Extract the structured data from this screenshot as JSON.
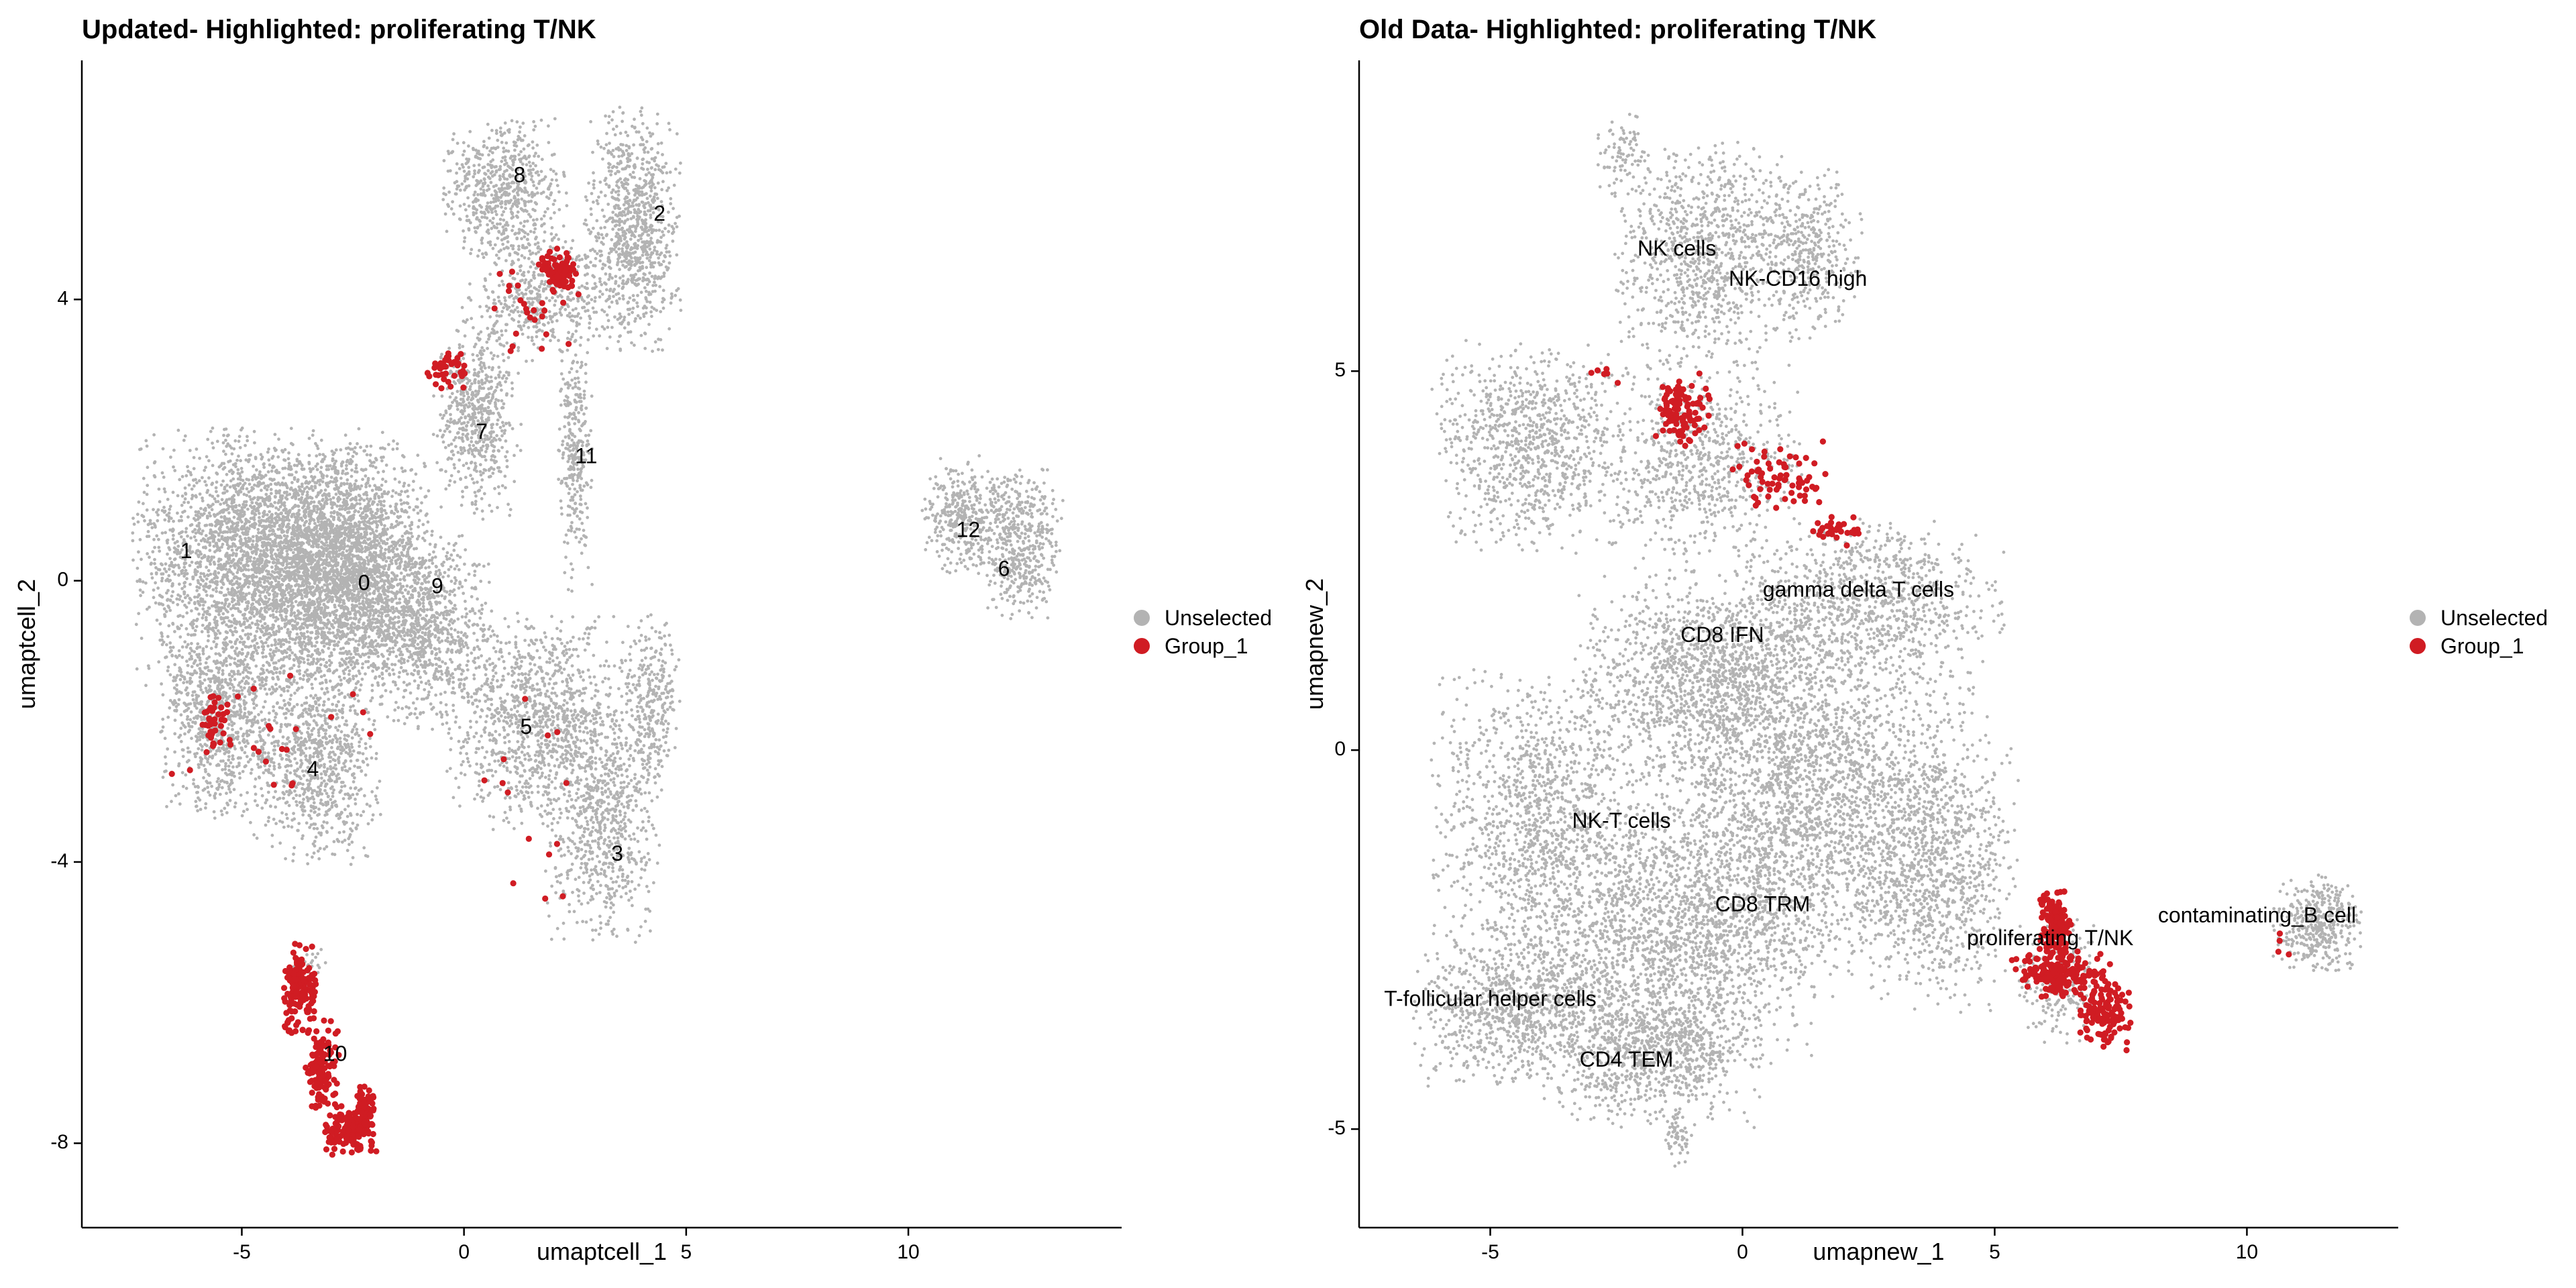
{
  "colors": {
    "unselected": "#b3b3b3",
    "group_1": "#d01c23"
  },
  "chart_data": [
    {
      "type": "scatter",
      "title": "Updated- Highlighted: proliferating T/NK",
      "xlabel": "umaptcell_1",
      "ylabel": "umaptcell_2",
      "xlim": [
        -8.6,
        14.8
      ],
      "ylim": [
        -9.2,
        7.4
      ],
      "xticks": [
        -5,
        0,
        5,
        10
      ],
      "yticks": [
        -8,
        -4,
        0,
        4
      ],
      "legend": {
        "position": "right",
        "entries": [
          "Unselected",
          "Group_1"
        ]
      },
      "cluster_labels": [
        {
          "text": "8",
          "x": 1.25,
          "y": 5.75
        },
        {
          "text": "2",
          "x": 4.4,
          "y": 5.2
        },
        {
          "text": "7",
          "x": 0.4,
          "y": 2.1
        },
        {
          "text": "11",
          "x": 2.75,
          "y": 1.75
        },
        {
          "text": "1",
          "x": -6.25,
          "y": 0.4
        },
        {
          "text": "0",
          "x": -2.25,
          "y": -0.05
        },
        {
          "text": "9",
          "x": -0.6,
          "y": -0.1
        },
        {
          "text": "12",
          "x": 11.35,
          "y": 0.7
        },
        {
          "text": "6",
          "x": 12.15,
          "y": 0.15
        },
        {
          "text": "5",
          "x": 1.4,
          "y": -2.1
        },
        {
          "text": "4",
          "x": -3.4,
          "y": -2.7
        },
        {
          "text": "3",
          "x": 3.45,
          "y": -3.9
        },
        {
          "text": "10",
          "x": -2.9,
          "y": -6.75
        }
      ],
      "series": [
        {
          "name": "Unselected",
          "color": "#b3b3b3",
          "regions": [
            {
              "cx": -4.5,
              "cy": 0.3,
              "rx": 2.7,
              "ry": 1.7,
              "n": 3200
            },
            {
              "cx": -2.6,
              "cy": 0.2,
              "rx": 1.8,
              "ry": 1.6,
              "n": 2200
            },
            {
              "cx": -5.4,
              "cy": -1.9,
              "rx": 1.3,
              "ry": 1.4,
              "n": 900
            },
            {
              "cx": -3.3,
              "cy": -2.5,
              "rx": 1.3,
              "ry": 1.4,
              "n": 900
            },
            {
              "cx": -0.9,
              "cy": -0.7,
              "rx": 1.4,
              "ry": 1.3,
              "n": 900
            },
            {
              "cx": 1.7,
              "cy": -2.0,
              "rx": 1.9,
              "ry": 1.4,
              "n": 1100
            },
            {
              "cx": 3.1,
              "cy": -3.5,
              "rx": 1.2,
              "ry": 1.5,
              "n": 700
            },
            {
              "cx": 4.2,
              "cy": -1.8,
              "rx": 0.6,
              "ry": 1.2,
              "n": 300
            },
            {
              "cx": 0.3,
              "cy": 2.3,
              "rx": 0.9,
              "ry": 1.3,
              "n": 600
            },
            {
              "cx": 2.5,
              "cy": 1.8,
              "rx": 0.35,
              "ry": 1.8,
              "n": 300
            },
            {
              "cx": 0.9,
              "cy": 5.6,
              "rx": 1.3,
              "ry": 0.9,
              "n": 600
            },
            {
              "cx": 3.8,
              "cy": 5.0,
              "rx": 1.0,
              "ry": 1.6,
              "n": 900
            },
            {
              "cx": 1.7,
              "cy": 4.1,
              "rx": 1.6,
              "ry": 0.9,
              "n": 500
            },
            {
              "cx": 11.3,
              "cy": 0.9,
              "rx": 0.9,
              "ry": 0.8,
              "n": 400
            },
            {
              "cx": 12.6,
              "cy": 0.5,
              "rx": 0.8,
              "ry": 1.0,
              "n": 450
            },
            {
              "cx": -3.5,
              "cy": -5.5,
              "rx": 0.4,
              "ry": 0.3,
              "n": 40
            }
          ]
        },
        {
          "name": "Group_1",
          "color": "#d01c23",
          "regions": [
            {
              "cx": -3.7,
              "cy": -5.8,
              "rx": 0.35,
              "ry": 0.6,
              "n": 160
            },
            {
              "cx": -3.2,
              "cy": -6.9,
              "rx": 0.35,
              "ry": 0.6,
              "n": 120
            },
            {
              "cx": -2.6,
              "cy": -7.8,
              "rx": 0.6,
              "ry": 0.35,
              "n": 140
            },
            {
              "cx": -2.2,
              "cy": -7.5,
              "rx": 0.2,
              "ry": 0.3,
              "n": 50
            },
            {
              "cx": 2.1,
              "cy": 4.4,
              "rx": 0.4,
              "ry": 0.3,
              "n": 80
            },
            {
              "cx": -0.4,
              "cy": 3.0,
              "rx": 0.5,
              "ry": 0.3,
              "n": 40
            },
            {
              "cx": -5.6,
              "cy": -2.0,
              "rx": 0.3,
              "ry": 0.45,
              "n": 40
            },
            {
              "cx": 1.6,
              "cy": 3.8,
              "rx": 1.0,
              "ry": 0.6,
              "n": 25
            },
            {
              "cx": -3.8,
              "cy": -2.2,
              "rx": 2.6,
              "ry": 1.0,
              "n": 22
            },
            {
              "cx": 1.5,
              "cy": -3.5,
              "rx": 1.2,
              "ry": 2.0,
              "n": 14
            }
          ]
        }
      ]
    },
    {
      "type": "scatter",
      "title": "Old Data- Highlighted: proliferating T/NK",
      "xlabel": "umapnew_1",
      "ylabel": "umapnew_2",
      "xlim": [
        -7.6,
        13.0
      ],
      "ylim": [
        -6.3,
        9.1
      ],
      "xticks": [
        -5,
        0,
        5,
        10
      ],
      "yticks": [
        -5,
        0,
        5
      ],
      "legend": {
        "position": "right",
        "entries": [
          "Unselected",
          "Group_1"
        ]
      },
      "cluster_labels": [
        {
          "text": "NK cells",
          "x": -1.3,
          "y": 6.6
        },
        {
          "text": "NK-CD16 high",
          "x": 1.1,
          "y": 6.2
        },
        {
          "text": "gamma delta T cells",
          "x": 2.3,
          "y": 2.1
        },
        {
          "text": "CD8 IFN",
          "x": -0.4,
          "y": 1.5
        },
        {
          "text": "NK-T cells",
          "x": -2.4,
          "y": -0.95
        },
        {
          "text": "CD8 TRM",
          "x": 0.4,
          "y": -2.05
        },
        {
          "text": "contaminating_B cell",
          "x": 10.2,
          "y": -2.2
        },
        {
          "text": "proliferating T/NK",
          "x": 6.1,
          "y": -2.5
        },
        {
          "text": "T-follicular helper cells",
          "x": -5.0,
          "y": -3.3
        },
        {
          "text": "CD4 TEM",
          "x": -2.3,
          "y": -4.1
        }
      ],
      "series": [
        {
          "name": "Unselected",
          "color": "#b3b3b3",
          "regions": [
            {
              "cx": -4.2,
              "cy": 4.0,
              "rx": 1.8,
              "ry": 1.3,
              "n": 900
            },
            {
              "cx": -0.8,
              "cy": 3.8,
              "rx": 1.8,
              "ry": 1.2,
              "n": 700
            },
            {
              "cx": -0.8,
              "cy": 6.5,
              "rx": 1.6,
              "ry": 1.4,
              "n": 900
            },
            {
              "cx": 1.3,
              "cy": 6.6,
              "rx": 1.0,
              "ry": 1.1,
              "n": 400
            },
            {
              "cx": -2.4,
              "cy": 7.9,
              "rx": 0.5,
              "ry": 0.6,
              "n": 80
            },
            {
              "cx": 2.5,
              "cy": 2.0,
              "rx": 2.5,
              "ry": 1.0,
              "n": 900
            },
            {
              "cx": -0.7,
              "cy": 1.0,
              "rx": 2.4,
              "ry": 1.3,
              "n": 1300
            },
            {
              "cx": 1.4,
              "cy": -0.6,
              "rx": 3.3,
              "ry": 2.2,
              "n": 2600
            },
            {
              "cx": -4.0,
              "cy": -0.9,
              "rx": 2.0,
              "ry": 1.8,
              "n": 1200
            },
            {
              "cx": -1.2,
              "cy": -2.4,
              "rx": 2.8,
              "ry": 1.6,
              "n": 1700
            },
            {
              "cx": 3.8,
              "cy": -1.7,
              "rx": 1.6,
              "ry": 1.6,
              "n": 800
            },
            {
              "cx": -4.5,
              "cy": -3.4,
              "rx": 1.9,
              "ry": 1.0,
              "n": 900
            },
            {
              "cx": -1.8,
              "cy": -4.0,
              "rx": 2.0,
              "ry": 0.9,
              "n": 900
            },
            {
              "cx": -1.3,
              "cy": -5.1,
              "rx": 0.3,
              "ry": 0.4,
              "n": 60
            },
            {
              "cx": 6.3,
              "cy": -3.0,
              "rx": 0.8,
              "ry": 0.8,
              "n": 200
            },
            {
              "cx": 11.4,
              "cy": -2.3,
              "rx": 0.8,
              "ry": 0.6,
              "n": 400
            }
          ]
        },
        {
          "name": "Group_1",
          "color": "#d01c23",
          "regions": [
            {
              "cx": 6.2,
              "cy": -2.3,
              "rx": 0.3,
              "ry": 0.5,
              "n": 160
            },
            {
              "cx": 6.3,
              "cy": -2.95,
              "rx": 0.9,
              "ry": 0.3,
              "n": 170
            },
            {
              "cx": 7.2,
              "cy": -3.45,
              "rx": 0.5,
              "ry": 0.5,
              "n": 130
            },
            {
              "cx": -1.2,
              "cy": 4.5,
              "rx": 0.5,
              "ry": 0.5,
              "n": 100
            },
            {
              "cx": 0.7,
              "cy": 3.6,
              "rx": 0.9,
              "ry": 0.45,
              "n": 70
            },
            {
              "cx": 1.8,
              "cy": 2.9,
              "rx": 0.5,
              "ry": 0.2,
              "n": 30
            },
            {
              "cx": -2.8,
              "cy": 4.95,
              "rx": 0.4,
              "ry": 0.1,
              "n": 6
            },
            {
              "cx": 10.8,
              "cy": -2.6,
              "rx": 0.2,
              "ry": 0.3,
              "n": 4
            }
          ]
        }
      ]
    }
  ]
}
